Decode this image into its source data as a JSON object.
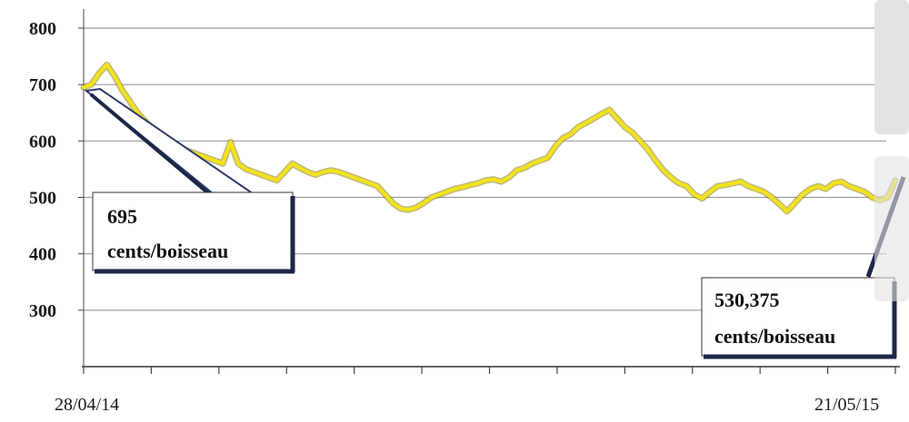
{
  "chart_data": {
    "type": "line",
    "title": "",
    "xlabel": "",
    "ylabel": "",
    "ylim": [
      200,
      800
    ],
    "yticks": [
      300,
      400,
      500,
      600,
      700,
      800
    ],
    "x_start_label": "28/04/14",
    "x_end_label": "21/05/15",
    "grid": "horizontal",
    "line_color": "#f2e21b",
    "series": [
      {
        "values": [
          695,
          700,
          720,
          735,
          715,
          690,
          670,
          650,
          635,
          620,
          605,
          595,
          590,
          585,
          580,
          575,
          570,
          565,
          560,
          598,
          560,
          550,
          545,
          540,
          535,
          530,
          545,
          560,
          552,
          545,
          540,
          545,
          548,
          545,
          540,
          535,
          530,
          525,
          520,
          505,
          490,
          480,
          478,
          482,
          490,
          500,
          505,
          510,
          515,
          518,
          522,
          525,
          530,
          532,
          528,
          535,
          548,
          552,
          560,
          565,
          570,
          590,
          605,
          612,
          625,
          632,
          640,
          648,
          655,
          640,
          625,
          615,
          600,
          585,
          565,
          548,
          535,
          525,
          520,
          505,
          498,
          510,
          520,
          522,
          525,
          528,
          520,
          515,
          510,
          500,
          488,
          475,
          490,
          505,
          515,
          520,
          515,
          525,
          528,
          520,
          515,
          510,
          500,
          495,
          500,
          530
        ]
      }
    ]
  },
  "annotations": {
    "start_value": "695",
    "start_unit": "cents/boisseau",
    "end_value": "530,375",
    "end_unit": "cents/boisseau"
  }
}
